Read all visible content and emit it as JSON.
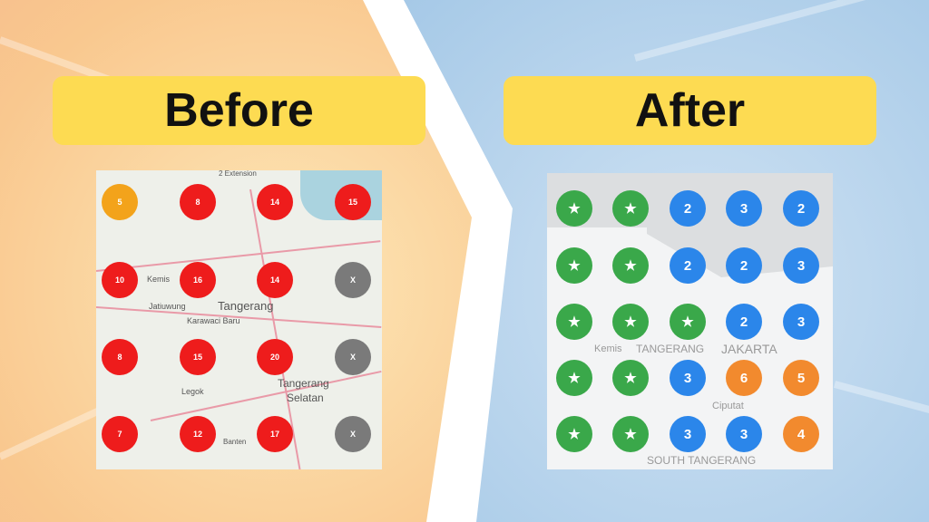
{
  "before": {
    "title": "Before",
    "map_labels": [
      "2 Extension",
      "Kemis",
      "Tangerang",
      "Jatiuwung",
      "Karawaci Baru",
      "Legok",
      "Tangerang",
      "Selatan",
      "Banten"
    ],
    "rows": [
      [
        {
          "t": "5",
          "c": "#f3a31b"
        },
        {
          "t": "8",
          "c": "#ee1c1c"
        },
        {
          "t": "14",
          "c": "#ee1c1c"
        },
        {
          "t": "15",
          "c": "#ee1c1c"
        }
      ],
      [
        {
          "t": "10",
          "c": "#ee1c1c"
        },
        {
          "t": "16",
          "c": "#ee1c1c"
        },
        {
          "t": "14",
          "c": "#ee1c1c"
        },
        {
          "t": "X",
          "c": "#7a7a7a"
        }
      ],
      [
        {
          "t": "8",
          "c": "#ee1c1c"
        },
        {
          "t": "15",
          "c": "#ee1c1c"
        },
        {
          "t": "20",
          "c": "#ee1c1c"
        },
        {
          "t": "X",
          "c": "#7a7a7a"
        }
      ],
      [
        {
          "t": "7",
          "c": "#ee1c1c"
        },
        {
          "t": "12",
          "c": "#ee1c1c"
        },
        {
          "t": "17",
          "c": "#ee1c1c"
        },
        {
          "t": "X",
          "c": "#7a7a7a"
        }
      ]
    ]
  },
  "after": {
    "title": "After",
    "map_labels": [
      "Kemis",
      "TANGERANG",
      "JAKARTA",
      "Ciputat",
      "SOUTH TANGERANG"
    ],
    "rows": [
      [
        {
          "t": "★",
          "c": "#3aa84a"
        },
        {
          "t": "★",
          "c": "#3aa84a"
        },
        {
          "t": "2",
          "c": "#2b86ea"
        },
        {
          "t": "3",
          "c": "#2b86ea"
        },
        {
          "t": "2",
          "c": "#2b86ea"
        }
      ],
      [
        {
          "t": "★",
          "c": "#3aa84a"
        },
        {
          "t": "★",
          "c": "#3aa84a"
        },
        {
          "t": "2",
          "c": "#2b86ea"
        },
        {
          "t": "2",
          "c": "#2b86ea"
        },
        {
          "t": "3",
          "c": "#2b86ea"
        }
      ],
      [
        {
          "t": "★",
          "c": "#3aa84a"
        },
        {
          "t": "★",
          "c": "#3aa84a"
        },
        {
          "t": "★",
          "c": "#3aa84a"
        },
        {
          "t": "2",
          "c": "#2b86ea"
        },
        {
          "t": "3",
          "c": "#2b86ea"
        }
      ],
      [
        {
          "t": "★",
          "c": "#3aa84a"
        },
        {
          "t": "★",
          "c": "#3aa84a"
        },
        {
          "t": "3",
          "c": "#2b86ea"
        },
        {
          "t": "6",
          "c": "#f28a2e"
        },
        {
          "t": "5",
          "c": "#f28a2e"
        }
      ],
      [
        {
          "t": "★",
          "c": "#3aa84a"
        },
        {
          "t": "★",
          "c": "#3aa84a"
        },
        {
          "t": "3",
          "c": "#2b86ea"
        },
        {
          "t": "3",
          "c": "#2b86ea"
        },
        {
          "t": "4",
          "c": "#f28a2e"
        }
      ]
    ]
  }
}
